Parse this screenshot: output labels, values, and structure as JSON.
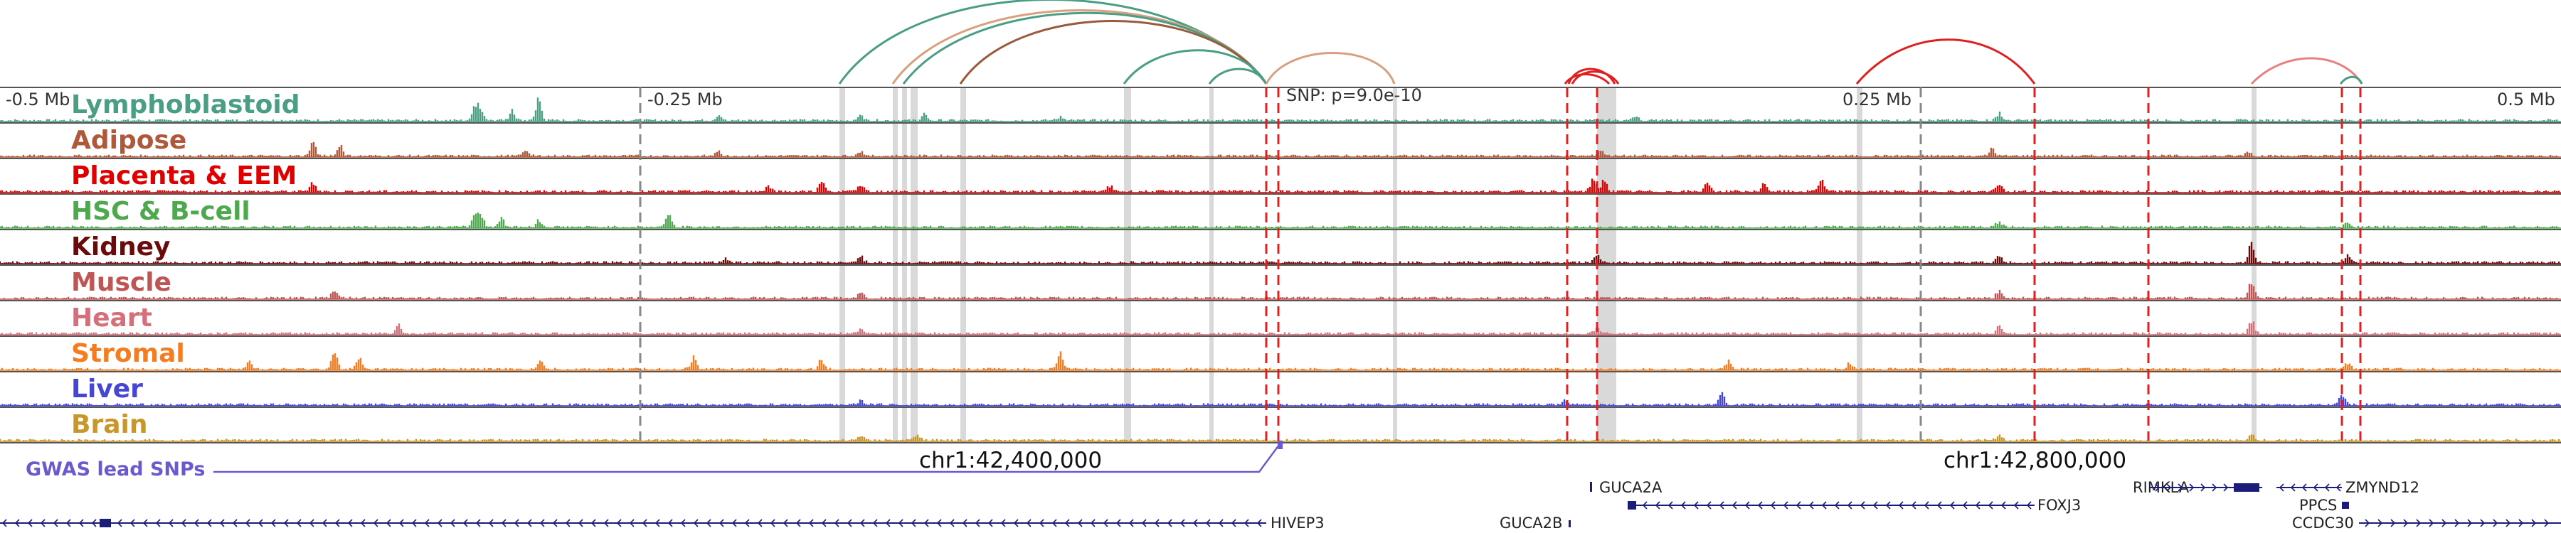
{
  "axis": {
    "left": "-0.5 Mb",
    "left_mid": "-0.25 Mb",
    "snp": "SNP: p=9.0e-10",
    "right_mid": "0.25 Mb",
    "right": "0.5 Mb"
  },
  "tracks": [
    {
      "name": "Lymphoblastoid",
      "color": "#4a9e84"
    },
    {
      "name": "Adipose",
      "color": "#b0583a"
    },
    {
      "name": "Placenta & EEM",
      "color": "#e00000"
    },
    {
      "name": "HSC & B-cell",
      "color": "#4ea94e"
    },
    {
      "name": "Kidney",
      "color": "#6b0a0a"
    },
    {
      "name": "Muscle",
      "color": "#bf5555"
    },
    {
      "name": "Heart",
      "color": "#d4707a"
    },
    {
      "name": "Stromal",
      "color": "#f57c1f"
    },
    {
      "name": "Liver",
      "color": "#4545d6"
    },
    {
      "name": "Brain",
      "color": "#c9962a"
    }
  ],
  "gwas_label": "GWAS lead SNPs",
  "coords": {
    "left": "chr1:42,400,000",
    "right": "chr1:42,800,000"
  },
  "genes": {
    "guca2a": "GUCA2A",
    "foxj3": "FOXJ3",
    "hivep3": "HIVEP3",
    "guca2b": "GUCA2B",
    "rimkla": "RIMKLA",
    "zmynd12": "ZMYND12",
    "ppcs": "PPCS",
    "ccdc30": "CCDC30"
  },
  "colors": {
    "red_marker": "#e02020",
    "gray_marker": "#d9d9d9",
    "gene_blue": "#1c1c7a",
    "snp_purple": "#6a5acd"
  }
}
